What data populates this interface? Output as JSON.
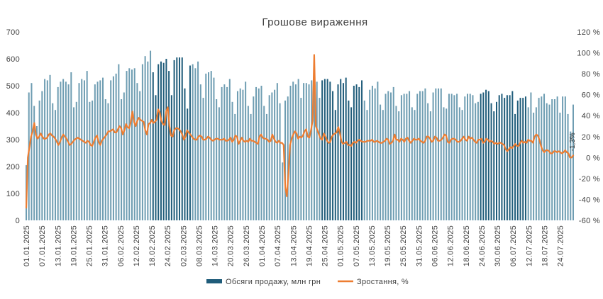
{
  "chart_data": {
    "type": "bar",
    "title": "Грошове  вираження",
    "x_start": "2025-01-01",
    "x_end": "2025-07-29",
    "x_tick_labels": [
      "01.01.2025",
      "07.01.2025",
      "13.01.2025",
      "19.01.2025",
      "25.01.2025",
      "31.01.2025",
      "06.02.2025",
      "12.02.2025",
      "18.02.2025",
      "24.02.2025",
      "02.03.2025",
      "08.03.2025",
      "14.03.2025",
      "20.03.2025",
      "26.03.2025",
      "01.04.2025",
      "07.04.2025",
      "13.04.2025",
      "19.04.2025",
      "25.04.2025",
      "01.05.2025",
      "07.05.2025",
      "13.05.2025",
      "19.05.2025",
      "25.05.2025",
      "31.05.2025",
      "06.06.2025",
      "12.06.2025",
      "18.06.2025",
      "24.06.2025",
      "30.06.2025",
      "06.07.2025",
      "12.07.2025",
      "18.07.2025",
      "24.07.2025"
    ],
    "y_left": {
      "min": 0,
      "max": 700,
      "ticks": [
        "0",
        "100",
        "200",
        "300",
        "400",
        "500",
        "600",
        "700"
      ]
    },
    "y_right": {
      "min": -60,
      "max": 120,
      "ticks": [
        "-60 %",
        "-40 %",
        "-20 %",
        "0 %",
        "20 %",
        "40 %",
        "60 %",
        "80 %",
        "100 %",
        "120 %"
      ]
    },
    "series": [
      {
        "name": "Обсяги  продажу,  млн  грн",
        "kind": "bar",
        "axis": "left",
        "color": "#1f5c7a",
        "values": [
          205,
          475,
          510,
          425,
          350,
          445,
          480,
          525,
          520,
          540,
          435,
          410,
          495,
          515,
          525,
          515,
          505,
          550,
          420,
          440,
          510,
          525,
          520,
          555,
          440,
          445,
          505,
          515,
          520,
          530,
          450,
          435,
          520,
          535,
          545,
          580,
          450,
          475,
          555,
          565,
          560,
          565,
          510,
          480,
          580,
          610,
          590,
          630,
          550,
          465,
          580,
          590,
          585,
          600,
          555,
          465,
          595,
          605,
          605,
          605,
          490,
          415,
          575,
          580,
          565,
          590,
          505,
          455,
          545,
          550,
          555,
          530,
          450,
          420,
          495,
          505,
          495,
          525,
          440,
          395,
          480,
          490,
          485,
          515,
          425,
          395,
          460,
          495,
          490,
          500,
          425,
          395,
          465,
          475,
          485,
          510,
          435,
          215,
          445,
          460,
          500,
          515,
          505,
          525,
          455,
          510,
          510,
          505,
          520,
          500,
          515,
          455,
          520,
          525,
          525,
          515,
          480,
          410,
          505,
          525,
          510,
          530,
          445,
          420,
          500,
          505,
          495,
          520,
          445,
          410,
          485,
          500,
          490,
          515,
          430,
          410,
          470,
          480,
          475,
          495,
          425,
          405,
          465,
          470,
          470,
          480,
          420,
          410,
          470,
          480,
          480,
          490,
          435,
          405,
          475,
          490,
          490,
          490,
          420,
          415,
          470,
          470,
          465,
          470,
          420,
          410,
          460,
          470,
          470,
          465,
          435,
          440,
          470,
          475,
          485,
          480,
          435,
          405,
          440,
          465,
          470,
          455,
          465,
          465,
          480,
          395,
          445,
          455,
          455,
          460,
          420,
          475,
          400,
          420,
          455,
          460,
          470,
          435,
          430,
          450,
          450,
          460,
          400,
          460,
          460,
          395,
          330,
          430
        ]
      },
      {
        "name": "Зростання,  %",
        "kind": "line",
        "axis": "right",
        "color": "#ed7d31",
        "values": [
          -48,
          0,
          10,
          20,
          25,
          33,
          22,
          18,
          20,
          23,
          20,
          18,
          18,
          19,
          22,
          23,
          21,
          20,
          18,
          15,
          12,
          15,
          19,
          22,
          20,
          18,
          15,
          12,
          13,
          15,
          17,
          18,
          19,
          18,
          17,
          16,
          15,
          14,
          16,
          15,
          12,
          11,
          15,
          19,
          21,
          15,
          12,
          16,
          18,
          20,
          22,
          25,
          25,
          26,
          27,
          24,
          24,
          27,
          30,
          28,
          22,
          26,
          32,
          29,
          28,
          34,
          44,
          34,
          30,
          35,
          38,
          36,
          35,
          34,
          26,
          22,
          32,
          33,
          36,
          33,
          34,
          36,
          46,
          43,
          35,
          32,
          31,
          44,
          48,
          30,
          21,
          20,
          26,
          28,
          28,
          27,
          25,
          22,
          17,
          20,
          26,
          24,
          22,
          20,
          18,
          17,
          17,
          20,
          21,
          20,
          17,
          17,
          18,
          20,
          19,
          17,
          16,
          17,
          18,
          18,
          17,
          17,
          17,
          18,
          16,
          16,
          17,
          19,
          15,
          17,
          21,
          20,
          13,
          16,
          19,
          16,
          15,
          16,
          15,
          18,
          16,
          16,
          15,
          14,
          13,
          20,
          22,
          19,
          18,
          18,
          17,
          15,
          16,
          22,
          18,
          15,
          14,
          16,
          14,
          14,
          12,
          -28,
          -37,
          -15,
          12,
          18,
          22,
          25,
          23,
          18,
          20,
          19,
          21,
          25,
          27,
          20,
          19,
          26,
          35,
          98,
          30,
          26,
          22,
          18,
          17,
          23,
          20,
          16,
          14,
          15,
          20,
          22,
          23,
          24,
          29,
          23,
          15,
          13,
          14,
          15,
          12,
          12,
          11,
          14,
          15,
          14,
          16,
          17,
          16,
          15,
          15,
          15,
          16,
          16,
          16,
          17,
          15,
          15,
          16,
          15,
          14,
          14,
          15,
          16,
          18,
          17,
          13,
          14,
          16,
          22,
          17,
          17,
          15,
          18,
          17,
          15,
          18,
          19,
          16,
          14,
          16,
          18,
          17,
          17,
          18,
          16,
          15,
          14,
          16,
          20,
          20,
          18,
          15,
          16,
          20,
          19,
          16,
          16,
          17,
          19,
          22,
          21,
          15,
          14,
          17,
          18,
          18,
          17,
          15,
          15,
          16,
          18,
          20,
          17,
          16,
          20,
          18,
          19,
          17,
          15,
          14,
          17,
          17,
          18,
          14,
          15,
          18,
          17,
          15,
          16,
          15,
          13,
          14,
          13,
          14,
          14,
          13,
          12,
          8,
          6,
          8,
          10,
          9,
          11,
          13,
          11,
          11,
          14,
          16,
          14,
          15,
          14,
          17,
          16,
          16,
          14,
          20,
          22,
          21,
          17,
          11,
          7,
          5,
          7,
          7,
          6,
          4,
          4,
          6,
          6,
          5,
          6,
          5,
          4,
          5,
          7,
          5,
          4,
          0,
          0,
          2
        ]
      }
    ],
    "dark_bar_ranges": [
      [
        "2025-02-18",
        "2025-03-05"
      ],
      [
        "2025-04-24",
        "2025-05-10"
      ],
      [
        "2025-06-23",
        "2025-07-11"
      ]
    ],
    "last_value_label": "-1,3%",
    "legend_position": "bottom",
    "grid": false
  }
}
